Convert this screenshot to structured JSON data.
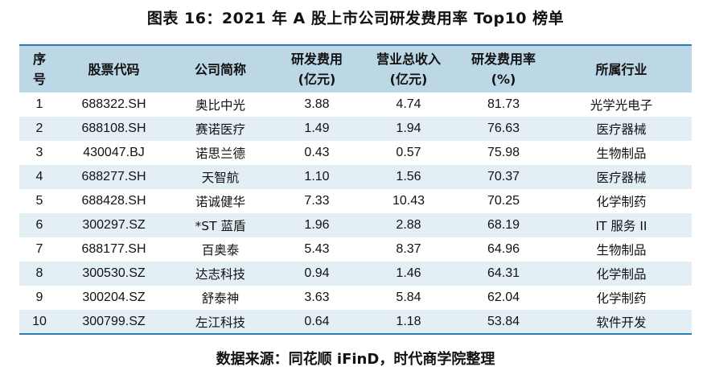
{
  "title": "图表 16：2021 年 A 股上市公司研发费用率 Top10 榜单",
  "header": {
    "col1_line1": "序",
    "col1_line2": "号",
    "col2": "股票代码",
    "col3": "公司简称",
    "col4_line1": "研发费用",
    "col4_line2": "(亿元)",
    "col5_line1": "营业总收入",
    "col5_line2": "(亿元)",
    "col6_line1": "研发费用率",
    "col6_line2": "(%)",
    "col7": "所属行业"
  },
  "rows": [
    {
      "rank": "1",
      "code": "688322.SH",
      "name": "奥比中光",
      "rd": "3.88",
      "revenue": "4.74",
      "ratio": "81.73",
      "industry": "光学光电子"
    },
    {
      "rank": "2",
      "code": "688108.SH",
      "name": "赛诺医疗",
      "rd": "1.49",
      "revenue": "1.94",
      "ratio": "76.63",
      "industry": "医疗器械"
    },
    {
      "rank": "3",
      "code": "430047.BJ",
      "name": "诺思兰德",
      "rd": "0.43",
      "revenue": "0.57",
      "ratio": "75.98",
      "industry": "生物制品"
    },
    {
      "rank": "4",
      "code": "688277.SH",
      "name": "天智航",
      "rd": "1.10",
      "revenue": "1.56",
      "ratio": "70.37",
      "industry": "医疗器械"
    },
    {
      "rank": "5",
      "code": "688428.SH",
      "name": "诺诚健华",
      "rd": "7.33",
      "revenue": "10.43",
      "ratio": "70.25",
      "industry": "化学制药"
    },
    {
      "rank": "6",
      "code": "300297.SZ",
      "name": "*ST 蓝盾",
      "rd": "1.96",
      "revenue": "2.88",
      "ratio": "68.19",
      "industry": "IT 服务 II"
    },
    {
      "rank": "7",
      "code": "688177.SH",
      "name": "百奥泰",
      "rd": "5.43",
      "revenue": "8.37",
      "ratio": "64.96",
      "industry": "生物制品"
    },
    {
      "rank": "8",
      "code": "300530.SZ",
      "name": "达志科技",
      "rd": "0.94",
      "revenue": "1.46",
      "ratio": "64.31",
      "industry": "化学制品"
    },
    {
      "rank": "9",
      "code": "300204.SZ",
      "name": "舒泰神",
      "rd": "3.63",
      "revenue": "5.84",
      "ratio": "62.04",
      "industry": "化学制药"
    },
    {
      "rank": "10",
      "code": "300799.SZ",
      "name": "左江科技",
      "rd": "0.64",
      "revenue": "1.18",
      "ratio": "53.84",
      "industry": "软件开发"
    }
  ],
  "source": "数据来源：同花顺 iFinD，时代商学院整理",
  "colors": {
    "header_bg": "#bcd7e5",
    "stripe_bg": "#e4eff5",
    "rule": "#2c7fb8"
  }
}
